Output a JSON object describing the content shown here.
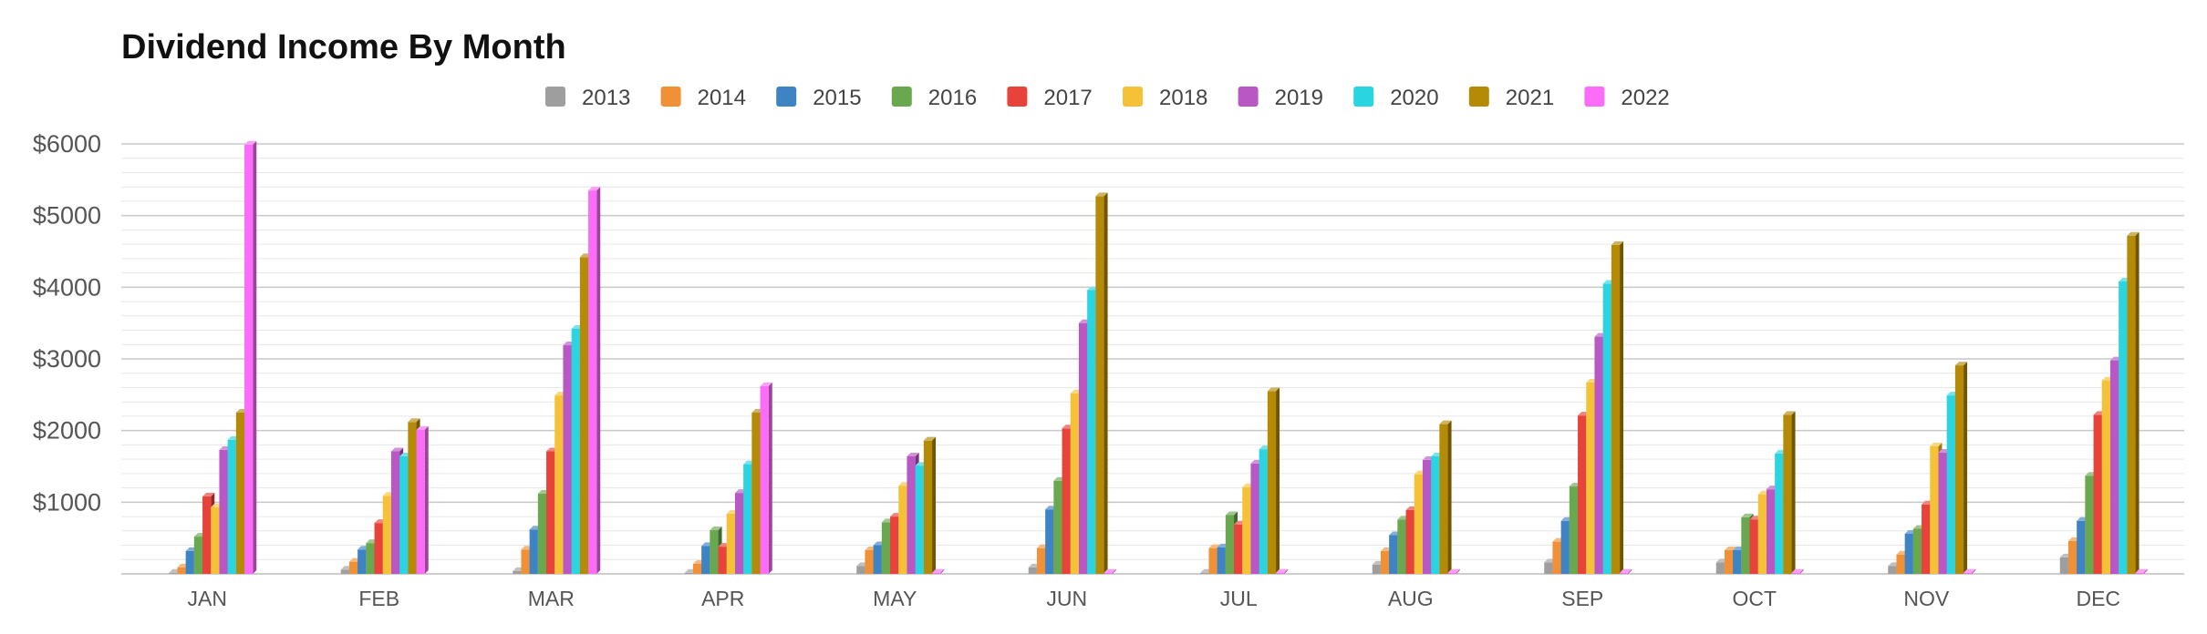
{
  "chart_data": {
    "type": "bar",
    "style": "3d-clustered-column",
    "title": "Dividend Income By Month",
    "xlabel": "",
    "ylabel": "",
    "ylim": [
      0,
      6000
    ],
    "ytick_values": [
      1000,
      2000,
      3000,
      4000,
      5000,
      6000
    ],
    "ytick_labels": [
      "$1000",
      "$2000",
      "$3000",
      "$4000",
      "$5000",
      "$6000"
    ],
    "grid": true,
    "legend_position": "top",
    "categories": [
      "JAN",
      "FEB",
      "MAR",
      "APR",
      "MAY",
      "JUN",
      "JUL",
      "AUG",
      "SEP",
      "OCT",
      "NOV",
      "DEC"
    ],
    "series": [
      {
        "name": "2013",
        "color": "#9e9e9e",
        "values": [
          0,
          60,
          40,
          0,
          110,
          90,
          0,
          130,
          160,
          160,
          110,
          230
        ]
      },
      {
        "name": "2014",
        "color": "#f09137",
        "values": [
          90,
          170,
          340,
          140,
          330,
          360,
          360,
          320,
          450,
          330,
          270,
          460
        ]
      },
      {
        "name": "2015",
        "color": "#3e83c4",
        "values": [
          320,
          340,
          620,
          390,
          400,
          900,
          370,
          540,
          740,
          330,
          560,
          740
        ]
      },
      {
        "name": "2016",
        "color": "#6aa84f",
        "values": [
          520,
          430,
          1120,
          610,
          720,
          1300,
          820,
          760,
          1220,
          790,
          630,
          1370
        ]
      },
      {
        "name": "2017",
        "color": "#e8433a",
        "values": [
          1080,
          710,
          1710,
          380,
          800,
          2030,
          690,
          890,
          2210,
          760,
          970,
          2220
        ]
      },
      {
        "name": "2018",
        "color": "#f5c237",
        "values": [
          930,
          1090,
          2490,
          840,
          1230,
          2520,
          1210,
          1390,
          2670,
          1110,
          1780,
          2700
        ]
      },
      {
        "name": "2019",
        "color": "#b957c4",
        "values": [
          1730,
          1710,
          3190,
          1130,
          1640,
          3500,
          1540,
          1590,
          3310,
          1180,
          1690,
          2980
        ]
      },
      {
        "name": "2020",
        "color": "#2ad4e0",
        "values": [
          1870,
          1640,
          3420,
          1530,
          1510,
          3960,
          1740,
          1640,
          4050,
          1680,
          2490,
          4080
        ]
      },
      {
        "name": "2021",
        "color": "#b48a07",
        "values": [
          2250,
          2120,
          4420,
          2250,
          1860,
          5270,
          2550,
          2090,
          4590,
          2220,
          2910,
          4720
        ]
      },
      {
        "name": "2022",
        "color": "#fb6cf8",
        "values": [
          5990,
          2010,
          5350,
          2620,
          0,
          0,
          0,
          0,
          0,
          0,
          0,
          0
        ]
      }
    ]
  }
}
